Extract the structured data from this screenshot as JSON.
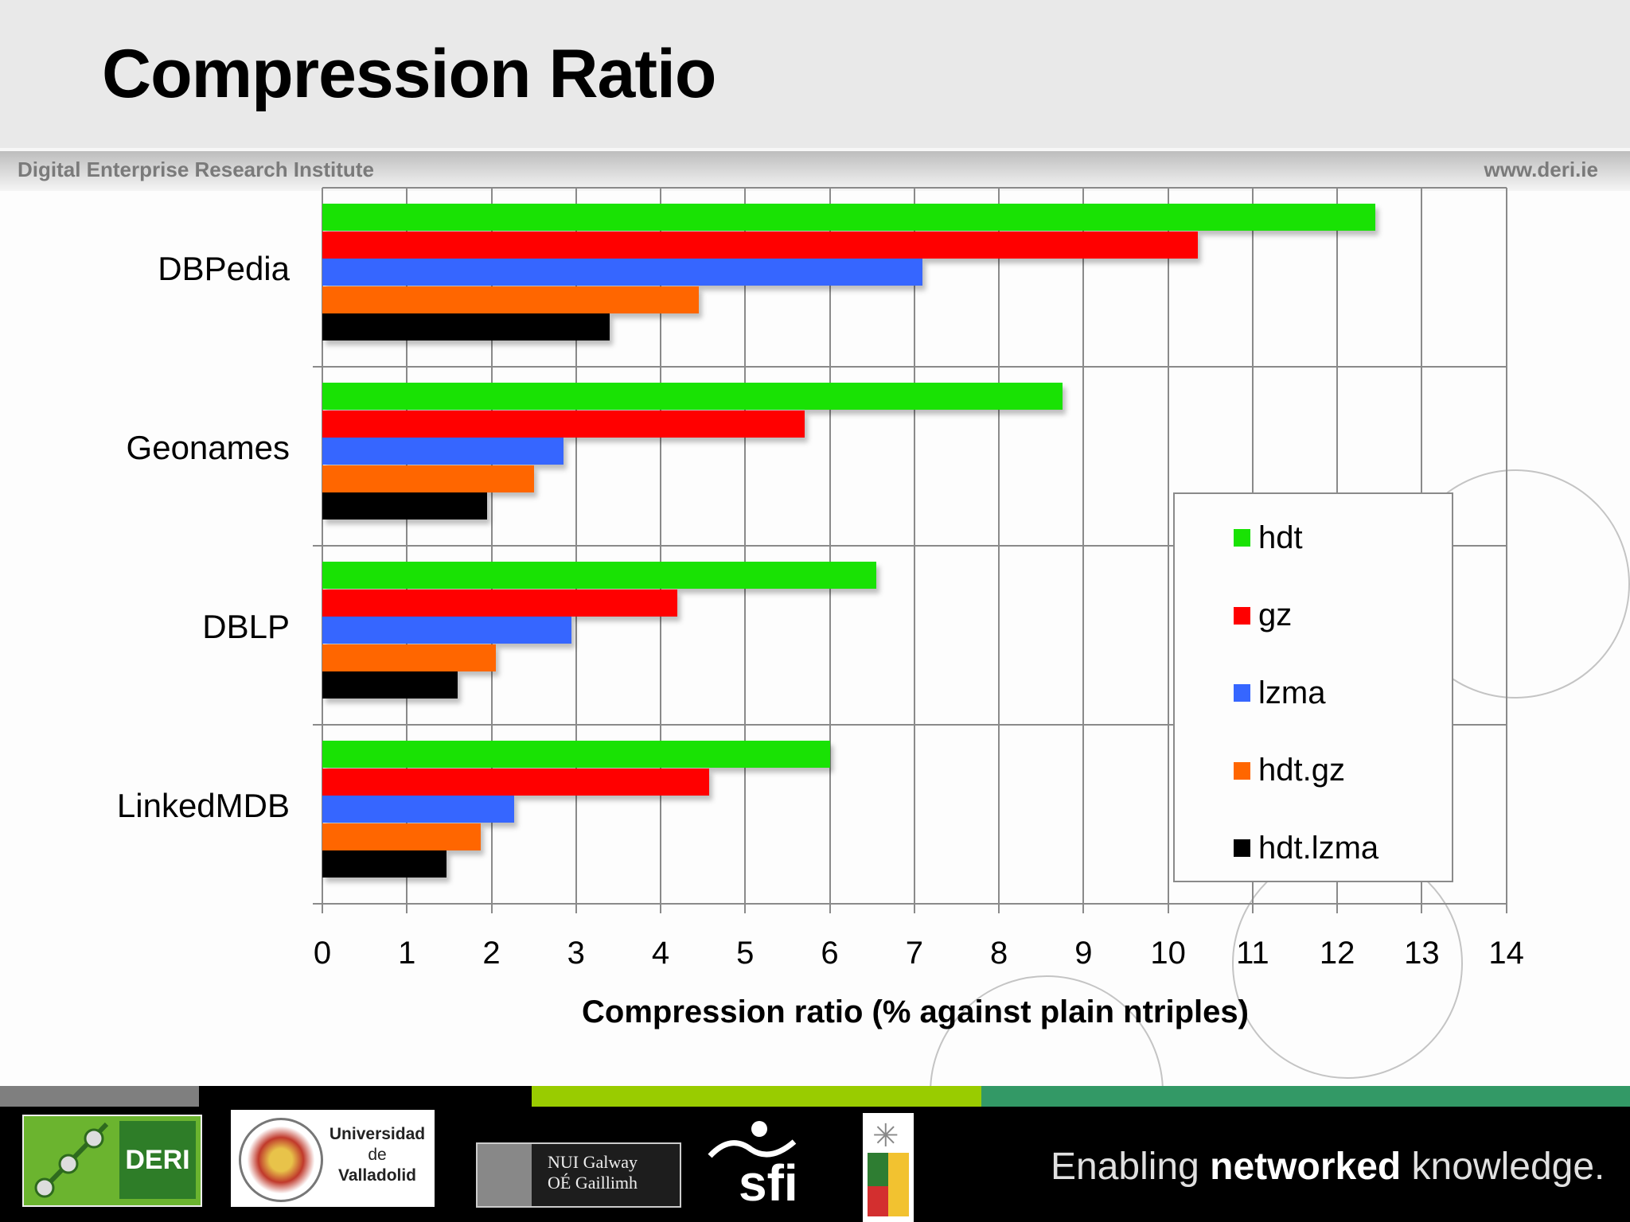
{
  "header": {
    "title": "Compression Ratio",
    "institute": "Digital Enterprise Research Institute",
    "url": "www.deri.ie"
  },
  "chart_data": {
    "type": "bar",
    "orientation": "horizontal",
    "title": "Compression Ratio",
    "xlabel": "Compression ratio (% against plain ntriples)",
    "ylabel": "",
    "xlim": [
      0,
      14
    ],
    "xticks": [
      0,
      1,
      2,
      3,
      4,
      5,
      6,
      7,
      8,
      9,
      10,
      11,
      12,
      13,
      14
    ],
    "grid": true,
    "legend_position": "right",
    "categories": [
      "DBPedia",
      "Geonames",
      "DBLP",
      "LinkedMDB"
    ],
    "series": [
      {
        "name": "hdt",
        "color": "#19e204",
        "values": [
          12.45,
          8.75,
          6.55,
          6.0
        ]
      },
      {
        "name": "gz",
        "color": "#ff0000",
        "values": [
          10.35,
          5.7,
          4.2,
          4.57
        ]
      },
      {
        "name": "lzma",
        "color": "#3666ff",
        "values": [
          7.1,
          2.85,
          2.95,
          2.27
        ]
      },
      {
        "name": "hdt.gz",
        "color": "#ff6600",
        "values": [
          4.45,
          2.5,
          2.05,
          1.87
        ]
      },
      {
        "name": "hdt.lzma",
        "color": "#000000",
        "values": [
          3.4,
          1.95,
          1.6,
          1.47
        ]
      }
    ]
  },
  "legend": {
    "items": [
      {
        "label": "hdt",
        "color": "#19e204"
      },
      {
        "label": "gz",
        "color": "#ff0000"
      },
      {
        "label": "lzma",
        "color": "#3666ff"
      },
      {
        "label": "hdt.gz",
        "color": "#ff6600"
      },
      {
        "label": "hdt.lzma",
        "color": "#000000"
      }
    ]
  },
  "footer": {
    "stripe_colors": [
      "#7f7f7f",
      "#000000",
      "#99cc00",
      "#339966"
    ],
    "logos": {
      "deri": "DERI",
      "uva_line1": "Universidad",
      "uva_line2": "de",
      "uva_line3": "Valladolid",
      "nui_line1": "NUI Galway",
      "nui_line2": "OÉ Gaillimh",
      "sfi": "sfi"
    },
    "tagline_pre": "Enabling ",
    "tagline_bold": "networked",
    "tagline_post": " knowledge."
  }
}
